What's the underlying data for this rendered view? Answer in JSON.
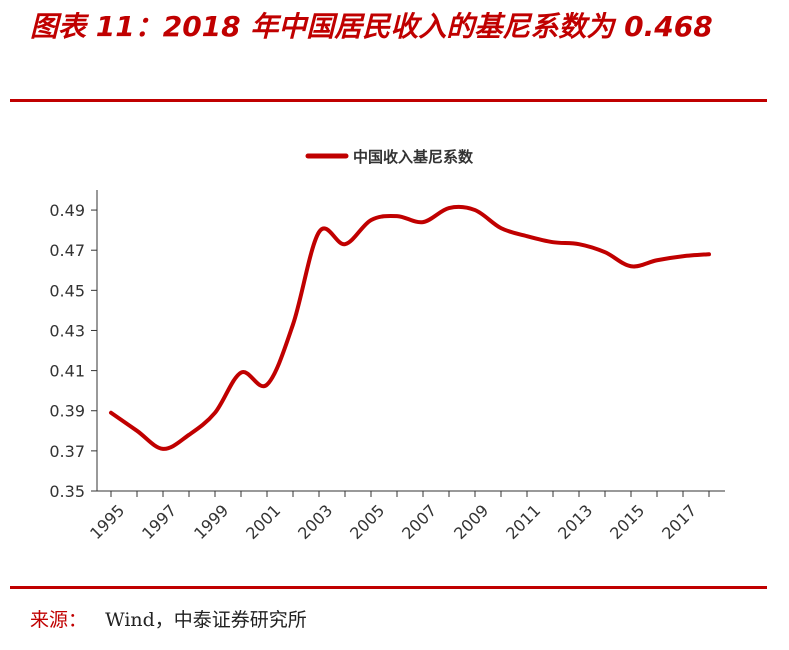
{
  "header": {
    "title": "图表 11：2018 年中国居民收入的基尼系数为 0.468"
  },
  "footer": {
    "source_label": "来源：",
    "source_text": "Wind，中泰证券研究所"
  },
  "colors": {
    "accent": "#c00000",
    "line": "#c00000",
    "axis": "#333333",
    "text": "#333333"
  },
  "chart_data": {
    "type": "line",
    "title": "",
    "xlabel": "",
    "ylabel": "",
    "legend": "top-center",
    "grid": false,
    "x_tick_labels": [
      "1995",
      "1997",
      "1999",
      "2001",
      "2003",
      "2005",
      "2007",
      "2009",
      "2011",
      "2013",
      "2015",
      "2017"
    ],
    "y_tick_labels": [
      "0.35",
      "0.37",
      "0.39",
      "0.41",
      "0.43",
      "0.45",
      "0.47",
      "0.49"
    ],
    "ylim": [
      0.35,
      0.5
    ],
    "series": [
      {
        "name": "中国收入基尼系数",
        "x": [
          1995,
          1996,
          1997,
          1998,
          1999,
          2000,
          2001,
          2002,
          2003,
          2004,
          2005,
          2006,
          2007,
          2008,
          2009,
          2010,
          2011,
          2012,
          2013,
          2014,
          2015,
          2016,
          2017,
          2018
        ],
        "values": [
          0.389,
          0.38,
          0.371,
          0.378,
          0.389,
          0.409,
          0.403,
          0.433,
          0.479,
          0.473,
          0.485,
          0.487,
          0.484,
          0.491,
          0.49,
          0.481,
          0.477,
          0.474,
          0.473,
          0.469,
          0.462,
          0.465,
          0.467,
          0.468
        ]
      }
    ]
  }
}
